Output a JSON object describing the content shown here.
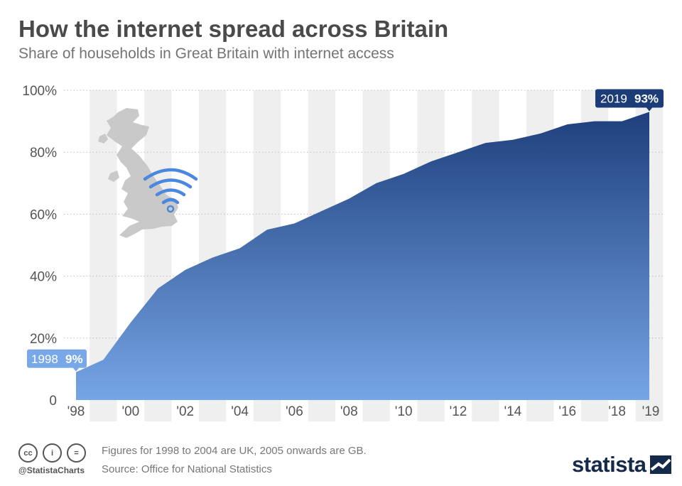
{
  "header": {
    "title": "How the internet spread across Britain",
    "subtitle": "Share of households in Great Britain with internet access"
  },
  "chart_data": {
    "type": "area",
    "x": [
      1998,
      1999,
      2000,
      2001,
      2002,
      2003,
      2004,
      2005,
      2006,
      2007,
      2008,
      2009,
      2010,
      2011,
      2012,
      2013,
      2014,
      2015,
      2016,
      2017,
      2018,
      2019
    ],
    "values": [
      9,
      13,
      25,
      36,
      42,
      46,
      49,
      55,
      57,
      61,
      65,
      70,
      73,
      77,
      80,
      83,
      84,
      86,
      89,
      90,
      90,
      93
    ],
    "ylim": [
      0,
      100
    ],
    "y_ticks": [
      0,
      20,
      40,
      60,
      80,
      100
    ],
    "y_tick_labels": [
      "0",
      "20%",
      "40%",
      "60%",
      "80%",
      "100%"
    ],
    "x_tick_labels": [
      "'98",
      "'00",
      "'02",
      "'04",
      "'06",
      "'08",
      "'10",
      "'12",
      "'14",
      "'16",
      "'18",
      "'19"
    ],
    "grid": true,
    "colors": {
      "top": "#1e3f7c",
      "bottom": "#76a5e6",
      "band": "#efefef",
      "start_label": "#78a8e8",
      "end_label": "#1c3c78"
    },
    "annotations": [
      {
        "year": "1998",
        "value": "9%"
      },
      {
        "year": "2019",
        "value": "93%"
      }
    ]
  },
  "footer": {
    "icons": [
      "cc-icon",
      "person-icon",
      "equals-icon"
    ],
    "icon_glyphs": [
      "cc",
      "i",
      "="
    ],
    "handle": "@StatistaCharts",
    "note": "Figures for 1998 to 2004 are UK, 2005 onwards are GB.",
    "source": "Source: Office for National Statistics",
    "brand": "statista"
  }
}
